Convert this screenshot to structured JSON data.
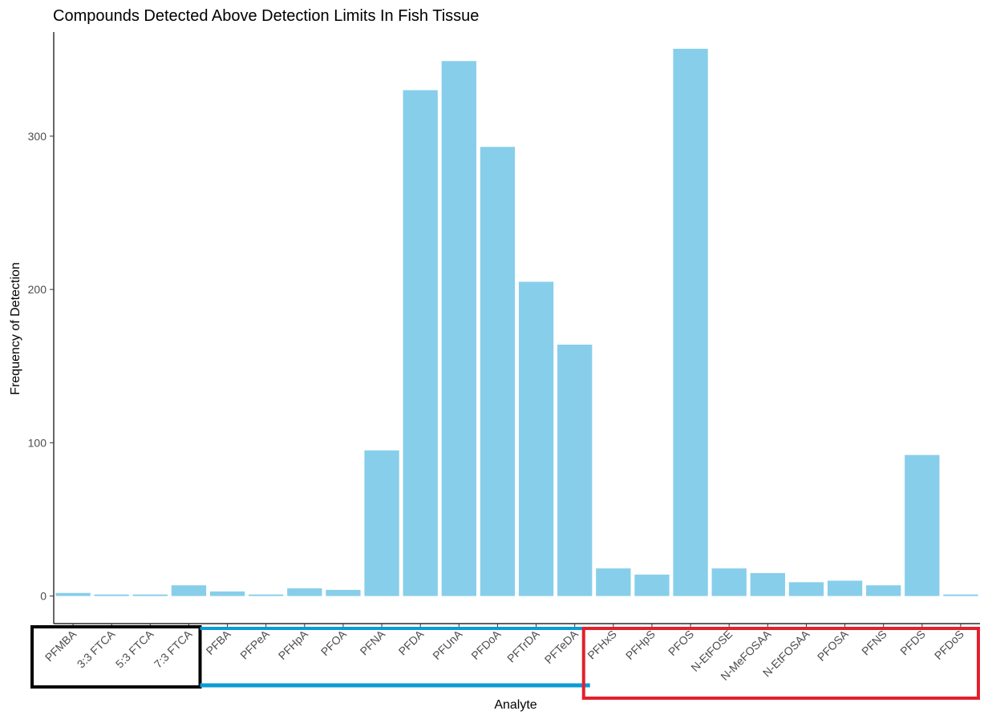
{
  "chart_data": {
    "type": "bar",
    "title": "Compounds Detected Above Detection Limits In Fish Tissue",
    "xlabel": "Analyte",
    "ylabel": "Frequency of Detection",
    "categories": [
      "PFMBA",
      "3:3 FTCA",
      "5:3 FTCA",
      "7:3 FTCA",
      "PFBA",
      "PFPeA",
      "PFHpA",
      "PFOA",
      "PFNA",
      "PFDA",
      "PFUnA",
      "PFDoA",
      "PFTrDA",
      "PFTeDA",
      "PFHxS",
      "PFHpS",
      "PFOS",
      "N-EtFOSE",
      "N-MeFOSAA",
      "N-EtFOSAA",
      "PFOSA",
      "PFNS",
      "PFDS",
      "PFDoS"
    ],
    "values": [
      2,
      1,
      1,
      7,
      3,
      1,
      5,
      4,
      95,
      330,
      349,
      293,
      205,
      164,
      18,
      14,
      357,
      18,
      15,
      9,
      10,
      7,
      92,
      1
    ],
    "yticks": [
      0,
      100,
      200,
      300
    ],
    "ylim": [
      -18,
      370
    ],
    "grid": false,
    "bar_color": "#87CEEB",
    "groups": [
      {
        "name": "black-box",
        "color": "#000000",
        "from": 0,
        "to": 3
      },
      {
        "name": "blue-underline",
        "color": "#0B9BD6",
        "from": 4,
        "to": 13
      },
      {
        "name": "red-box",
        "color": "#E4202C",
        "from": 14,
        "to": 23
      }
    ]
  }
}
